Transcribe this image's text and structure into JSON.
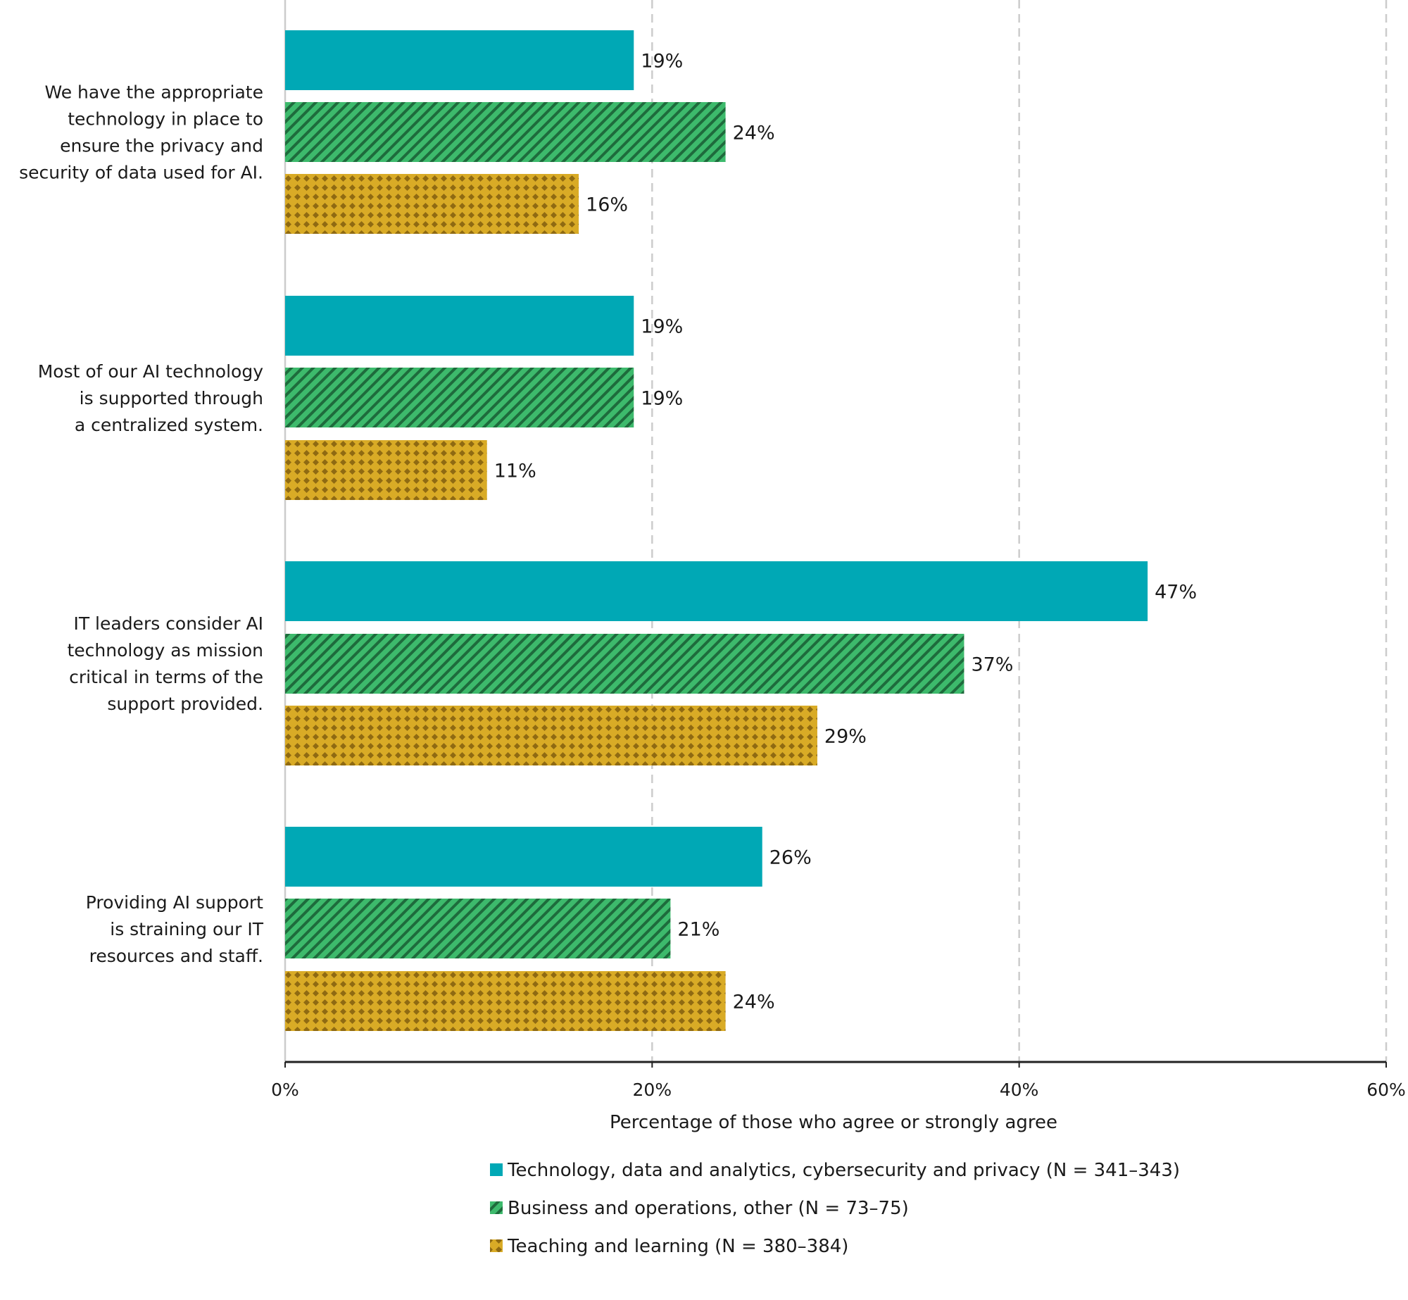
{
  "colors": {
    "teal": "#00a8b5",
    "green": "#3dba6c",
    "green_stripe": "#1e6b3c",
    "gold": "#d9ab26",
    "gold_dot": "#8f6a12",
    "grid": "#cccccc",
    "axis": "#222222",
    "text": "#1a1a1a"
  },
  "chart_data": {
    "type": "bar",
    "orientation": "horizontal",
    "xlabel": "Percentage of those who agree or strongly agree",
    "xlim": [
      0,
      60
    ],
    "xticks": [
      "0%",
      "20%",
      "40%",
      "60%"
    ],
    "grid": "vertical dashed",
    "legend_position": "bottom",
    "categories": [
      [
        "We have the appropriate",
        "technology in place to",
        "ensure the privacy and",
        "security of data used for AI."
      ],
      [
        "Most of our AI technology",
        "is supported through",
        "a centralized system."
      ],
      [
        "IT leaders consider AI",
        "technology as mission",
        "critical in terms of the",
        "support provided."
      ],
      [
        "Providing AI support",
        "is straining our IT",
        "resources and staff."
      ]
    ],
    "series": [
      {
        "name": "Technology, data and analytics, cybersecurity and privacy (N = 341–343)",
        "pattern": "solid",
        "values": [
          19,
          19,
          47,
          26
        ],
        "labels": [
          "19%",
          "19%",
          "47%",
          "26%"
        ]
      },
      {
        "name": "Business and operations, other (N = 73–75)",
        "pattern": "diagonal-stripes",
        "values": [
          24,
          19,
          37,
          21
        ],
        "labels": [
          "24%",
          "19%",
          "37%",
          "21%"
        ]
      },
      {
        "name": "Teaching and learning (N = 380–384)",
        "pattern": "diamond-grid",
        "values": [
          16,
          11,
          29,
          24
        ],
        "labels": [
          "16%",
          "11%",
          "29%",
          "24%"
        ]
      }
    ]
  }
}
